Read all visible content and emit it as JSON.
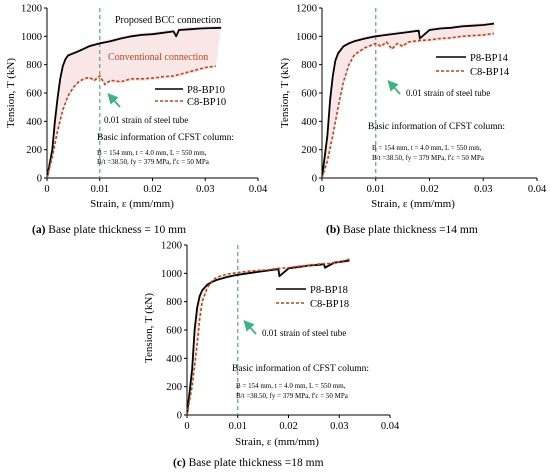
{
  "colors": {
    "series_p": "#000000",
    "series_c": "#b5471d",
    "marker_line": "#3fb37f",
    "arrow": "#3fb37f",
    "shade": "#f4d2d2",
    "axis": "#000000"
  },
  "chart_data": [
    {
      "type": "line",
      "caption_prefix": "(a)",
      "caption_text": " Base plate thickness = 10 mm",
      "xlabel": "Strain, ε (mm/mm)",
      "ylabel": "Tension, T (kN)",
      "xlim": [
        0,
        0.04
      ],
      "ylim": [
        0,
        1200
      ],
      "xticks": [
        "0",
        "0.01",
        "0.02",
        "0.03",
        "0.04"
      ],
      "xtick_values": [
        0,
        0.01,
        0.02,
        0.03,
        0.04
      ],
      "yticks": [
        "0",
        "200",
        "400",
        "600",
        "800",
        "1000",
        "1200"
      ],
      "ytick_values": [
        0,
        200,
        400,
        600,
        800,
        1000,
        1200
      ],
      "grid": false,
      "legend_position": "middle-right",
      "reference_line_x": 0.01,
      "reference_label": "0.01 strain of steel tube",
      "annotations": [
        "Proposed BCC connection",
        "Conventional connection"
      ],
      "info_title": "Basic information of CFST column:",
      "info_line1": "B = 154 mm, t = 4.0 mm, L = 550 mm,",
      "info_line2": "B/t =38.50, fy = 379 MPa, f'c = 50 MPa",
      "series": [
        {
          "name": "P8-BP10",
          "style": "solid",
          "x": [
            0,
            0.001,
            0.0015,
            0.002,
            0.0025,
            0.003,
            0.0035,
            0.004,
            0.005,
            0.006,
            0.008,
            0.01,
            0.012,
            0.014,
            0.016,
            0.018,
            0.02,
            0.022,
            0.024,
            0.0245,
            0.025,
            0.027,
            0.029,
            0.031,
            0.033
          ],
          "y": [
            0,
            200,
            400,
            560,
            700,
            790,
            840,
            865,
            880,
            895,
            930,
            950,
            965,
            985,
            1000,
            1010,
            1015,
            1025,
            1035,
            1000,
            1045,
            1050,
            1055,
            1058,
            1060
          ]
        },
        {
          "name": "C8-BP10",
          "style": "dashed",
          "x": [
            0,
            0.001,
            0.002,
            0.003,
            0.004,
            0.005,
            0.006,
            0.007,
            0.008,
            0.009,
            0.01,
            0.011,
            0.012,
            0.014,
            0.016,
            0.018,
            0.02,
            0.022,
            0.024,
            0.026,
            0.028,
            0.03,
            0.032
          ],
          "y": [
            0,
            150,
            330,
            480,
            580,
            640,
            680,
            700,
            710,
            690,
            720,
            660,
            690,
            680,
            700,
            700,
            705,
            715,
            720,
            740,
            760,
            780,
            790
          ]
        }
      ]
    },
    {
      "type": "line",
      "caption_prefix": "(b)",
      "caption_text": " Base plate thickness =14 mm",
      "xlabel": "Strain, ε (mm/mm)",
      "ylabel": "Tension, T (kN)",
      "xlim": [
        0,
        0.04
      ],
      "ylim": [
        0,
        1200
      ],
      "xticks": [
        "0",
        "0.01",
        "0.02",
        "0.03",
        "0.04"
      ],
      "xtick_values": [
        0,
        0.01,
        0.02,
        0.03,
        0.04
      ],
      "yticks": [
        "0",
        "200",
        "400",
        "600",
        "800",
        "1000",
        "1200"
      ],
      "ytick_values": [
        0,
        200,
        400,
        600,
        800,
        1000,
        1200
      ],
      "grid": false,
      "legend_position": "top-right",
      "reference_line_x": 0.01,
      "reference_label": "0.01 strain of steel tube",
      "annotations": [],
      "info_title": "Basic information of CFST column:",
      "info_line1": "B = 154 mm, t = 4.0 mm, L = 550 mm,",
      "info_line2": "B/t =38.50, fy = 379 MPa, f'c = 50 MPa",
      "series": [
        {
          "name": "P8-BP14",
          "style": "solid",
          "x": [
            0,
            0.001,
            0.0015,
            0.002,
            0.0025,
            0.003,
            0.004,
            0.005,
            0.006,
            0.008,
            0.01,
            0.012,
            0.014,
            0.016,
            0.018,
            0.0182,
            0.02,
            0.022,
            0.024,
            0.026,
            0.028,
            0.03,
            0.032
          ],
          "y": [
            0,
            300,
            550,
            720,
            830,
            880,
            930,
            950,
            965,
            985,
            1000,
            1010,
            1020,
            1030,
            1040,
            985,
            1045,
            1055,
            1060,
            1070,
            1075,
            1080,
            1090
          ]
        },
        {
          "name": "C8-BP14",
          "style": "dashed",
          "x": [
            0,
            0.001,
            0.002,
            0.003,
            0.004,
            0.005,
            0.006,
            0.008,
            0.01,
            0.011,
            0.012,
            0.013,
            0.014,
            0.015,
            0.016,
            0.018,
            0.02,
            0.022,
            0.024,
            0.026,
            0.028,
            0.03,
            0.032
          ],
          "y": [
            0,
            120,
            300,
            500,
            680,
            800,
            870,
            920,
            950,
            930,
            960,
            910,
            950,
            930,
            960,
            970,
            975,
            985,
            990,
            1000,
            1005,
            1010,
            1020
          ]
        }
      ]
    },
    {
      "type": "line",
      "caption_prefix": "(c)",
      "caption_text": " Base plate thickness =18 mm",
      "xlabel": "Strain, ε (mm/mm)",
      "ylabel": "Tension, T (kN)",
      "xlim": [
        0,
        0.04
      ],
      "ylim": [
        0,
        1200
      ],
      "xticks": [
        "0",
        "0.01",
        "0.02",
        "0.03",
        "0.04"
      ],
      "xtick_values": [
        0,
        0.01,
        0.02,
        0.03,
        0.04
      ],
      "yticks": [
        "0",
        "200",
        "400",
        "600",
        "800",
        "1000",
        "1200"
      ],
      "ytick_values": [
        0,
        200,
        400,
        600,
        800,
        1000,
        1200
      ],
      "grid": false,
      "legend_position": "top-right",
      "reference_line_x": 0.01,
      "reference_label": "0.01 strain of steel tube",
      "annotations": [],
      "info_title": "Basic information of CFST column:",
      "info_line1": "B = 154 mm, t = 4.0 mm, L = 550 mm,",
      "info_line2": "B/t =38.50, fy = 379 MPa, f'c = 50 MPa",
      "series": [
        {
          "name": "P8-BP18",
          "style": "solid",
          "x": [
            0,
            0.001,
            0.0015,
            0.002,
            0.0025,
            0.003,
            0.004,
            0.005,
            0.006,
            0.008,
            0.01,
            0.012,
            0.014,
            0.016,
            0.018,
            0.0182,
            0.02,
            0.022,
            0.024,
            0.026,
            0.027,
            0.0272,
            0.029,
            0.031,
            0.032
          ],
          "y": [
            0,
            320,
            600,
            760,
            840,
            880,
            920,
            940,
            955,
            975,
            990,
            1000,
            1010,
            1020,
            1030,
            980,
            1035,
            1045,
            1055,
            1060,
            1065,
            1040,
            1075,
            1085,
            1090
          ]
        },
        {
          "name": "C8-BP18",
          "style": "dashed",
          "x": [
            0,
            0.001,
            0.002,
            0.0025,
            0.003,
            0.004,
            0.005,
            0.006,
            0.008,
            0.01,
            0.012,
            0.014,
            0.016,
            0.018,
            0.02,
            0.022,
            0.024,
            0.026,
            0.028,
            0.03,
            0.032
          ],
          "y": [
            0,
            200,
            500,
            680,
            800,
            900,
            950,
            975,
            995,
            1005,
            1015,
            1020,
            1025,
            1035,
            1040,
            1050,
            1055,
            1065,
            1070,
            1080,
            1100
          ]
        }
      ]
    }
  ]
}
